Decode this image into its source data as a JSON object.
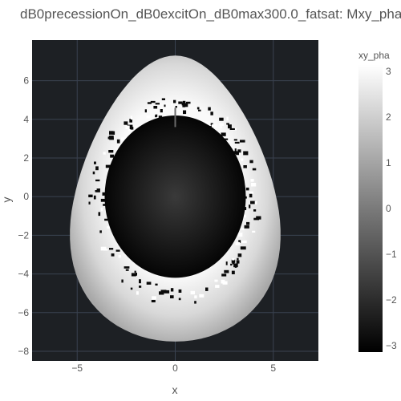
{
  "chart_data": {
    "type": "heatmap",
    "title": "dB0precessionOn_dB0excitOn_dB0max300.0_fatsat: Mxy_pha",
    "xlabel": "x",
    "ylabel": "y",
    "xlim": [
      -7.3,
      7.3
    ],
    "ylim": [
      -8.5,
      8.1
    ],
    "xticks": [
      -5,
      0,
      5
    ],
    "yticks": [
      -8,
      -6,
      -4,
      -2,
      0,
      2,
      4,
      6
    ],
    "grid": true,
    "colorscale": "Greys",
    "colorbar": {
      "title": "xy_pha",
      "range": [
        -3.14,
        3.14
      ],
      "ticks": [
        3,
        2,
        1,
        0,
        -1,
        -2,
        -3
      ],
      "tick_labels": [
        "3",
        "2",
        "1",
        "0",
        "−1",
        "−2",
        "−3"
      ]
    },
    "background_color": "#1d2024",
    "regions": [
      {
        "name": "outer",
        "shape": "egg",
        "center": [
          0,
          -0.5
        ],
        "semi_axes_x": [
          6.45,
          3.9
        ],
        "y_range": [
          -7.5,
          7.3
        ],
        "value_range": [
          0.6,
          3.14
        ]
      },
      {
        "name": "inner",
        "shape": "ellipse",
        "center": [
          0,
          0
        ],
        "semi_axes": [
          3.6,
          4.2
        ],
        "value_range": [
          -3.14,
          -1.8
        ]
      }
    ]
  }
}
